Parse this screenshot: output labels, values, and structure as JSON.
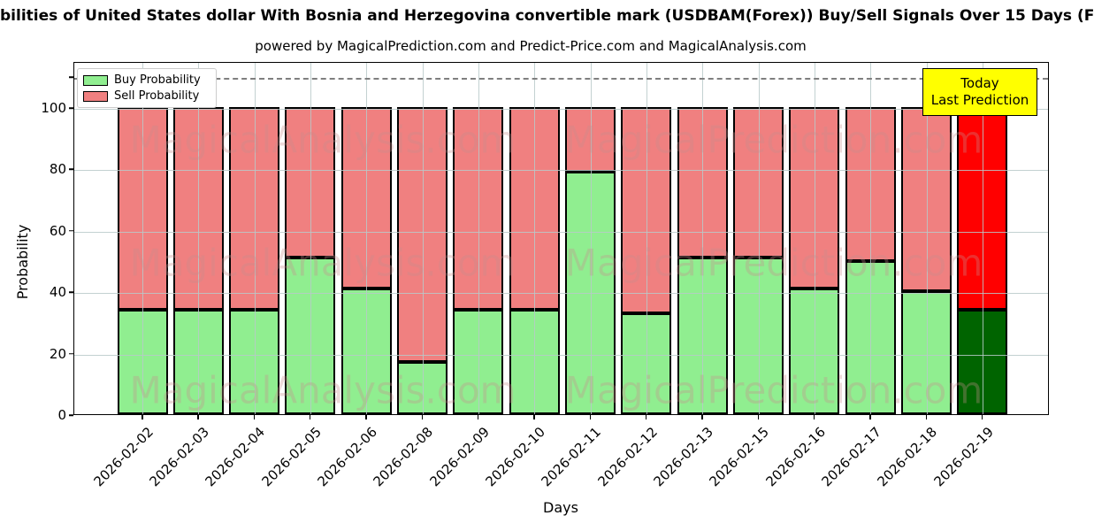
{
  "title": "bilities of United States dollar With Bosnia and Herzegovina convertible mark (USDBAM(Forex)) Buy/Sell Signals Over 15 Days (F",
  "subtitle": "powered by MagicalPrediction.com and Predict-Price.com and MagicalAnalysis.com",
  "legend": {
    "buy_label": "Buy Probability",
    "sell_label": "Sell Probability"
  },
  "today_box": {
    "line1": "Today",
    "line2": "Last Prediction",
    "bg_color": "#ffff00"
  },
  "watermarks": {
    "left": "MagicalAnalysis.com",
    "right": "MagicalPrediction.com"
  },
  "colors": {
    "buy": "#90ee90",
    "sell": "#f08080",
    "today_buy": "#006400",
    "today_sell": "#ff0000",
    "grid": "#b9c9c9",
    "dashed_line": "#7f7f7f",
    "watermark": "#c88f8f"
  },
  "chart_data": {
    "type": "bar",
    "stacked": true,
    "title": "bilities of United States dollar With Bosnia and Herzegovina convertible mark (USDBAM(Forex)) Buy/Sell Signals Over 15 Days (F",
    "xlabel": "Days",
    "ylabel": "Probability",
    "categories": [
      "2026-02-02",
      "2026-02-03",
      "2026-02-04",
      "2026-02-05",
      "2026-02-06",
      "2026-02-08",
      "2026-02-09",
      "2026-02-10",
      "2026-02-11",
      "2026-02-12",
      "2026-02-13",
      "2026-02-15",
      "2026-02-16",
      "2026-02-17",
      "2026-02-18",
      "2026-02-19"
    ],
    "series": [
      {
        "name": "Buy Probability",
        "values": [
          34,
          34,
          34,
          51,
          41,
          17,
          34,
          34,
          79,
          33,
          51,
          51,
          41,
          50,
          40,
          34
        ]
      },
      {
        "name": "Sell Probability",
        "values": [
          66,
          66,
          66,
          49,
          59,
          83,
          66,
          66,
          21,
          67,
          49,
          49,
          59,
          50,
          60,
          66
        ]
      }
    ],
    "today_category": "2026-02-19",
    "today_index": 15,
    "yticks": [
      0,
      20,
      40,
      60,
      80,
      100
    ],
    "ylim": [
      0,
      115
    ],
    "dashed_line_y": 110,
    "grid": true,
    "legend_position": "upper left"
  }
}
